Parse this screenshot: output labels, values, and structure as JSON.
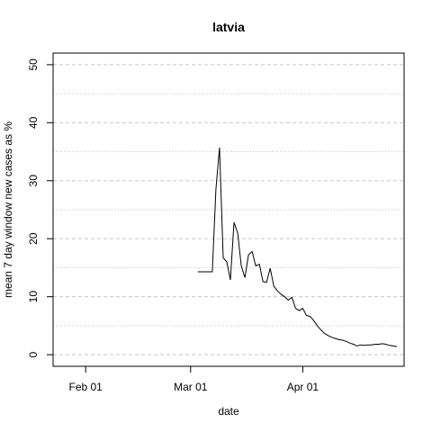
{
  "chart_data": {
    "type": "line",
    "title": "latvia",
    "xlabel": "date",
    "ylabel": "mean  7  day window new cases as %",
    "x_range": [
      "2020-01-23",
      "2020-04-29"
    ],
    "ylim": [
      -2,
      52
    ],
    "x_ticks": [
      {
        "label": "Feb 01",
        "date": "2020-02-01"
      },
      {
        "label": "Mar 01",
        "date": "2020-03-01"
      },
      {
        "label": "Apr 01",
        "date": "2020-04-01"
      }
    ],
    "y_ticks": [
      0,
      10,
      20,
      30,
      40,
      50
    ],
    "grid": {
      "major_dashed": [
        0,
        10,
        20,
        30,
        40,
        50
      ],
      "minor_dotted": [
        5,
        15,
        25,
        35,
        45
      ]
    },
    "series": [
      {
        "x": [
          "2020-03-03",
          "2020-03-04",
          "2020-03-05",
          "2020-03-06",
          "2020-03-07",
          "2020-03-08",
          "2020-03-09",
          "2020-03-10",
          "2020-03-11",
          "2020-03-12",
          "2020-03-13",
          "2020-03-14",
          "2020-03-15",
          "2020-03-16",
          "2020-03-17",
          "2020-03-18",
          "2020-03-19",
          "2020-03-20",
          "2020-03-21",
          "2020-03-22",
          "2020-03-23",
          "2020-03-24",
          "2020-03-25",
          "2020-03-26",
          "2020-03-27",
          "2020-03-28",
          "2020-03-29",
          "2020-03-30",
          "2020-03-31",
          "2020-04-01",
          "2020-04-02",
          "2020-04-03",
          "2020-04-04",
          "2020-04-05",
          "2020-04-06",
          "2020-04-07",
          "2020-04-08",
          "2020-04-09",
          "2020-04-10",
          "2020-04-11",
          "2020-04-12",
          "2020-04-13",
          "2020-04-14",
          "2020-04-15",
          "2020-04-16",
          "2020-04-17",
          "2020-04-18",
          "2020-04-19",
          "2020-04-20",
          "2020-04-21",
          "2020-04-22",
          "2020-04-23",
          "2020-04-24",
          "2020-04-25",
          "2020-04-26",
          "2020-04-27"
        ],
        "y": [
          14.3,
          14.3,
          14.3,
          14.3,
          14.3,
          28.5,
          35.7,
          16.7,
          16.0,
          12.9,
          22.8,
          21.0,
          15.3,
          13.3,
          17.2,
          17.8,
          15.3,
          15.6,
          12.6,
          12.5,
          14.9,
          11.8,
          11.0,
          10.4,
          10.0,
          9.4,
          9.9,
          8.0,
          7.6,
          8.0,
          6.8,
          6.6,
          5.9,
          5.0,
          4.3,
          3.7,
          3.3,
          3.0,
          2.8,
          2.6,
          2.5,
          2.3,
          2.0,
          1.8,
          1.5,
          1.7,
          1.6,
          1.7,
          1.7,
          1.8,
          1.8,
          1.9,
          1.8,
          1.6,
          1.5,
          1.4
        ]
      }
    ]
  }
}
